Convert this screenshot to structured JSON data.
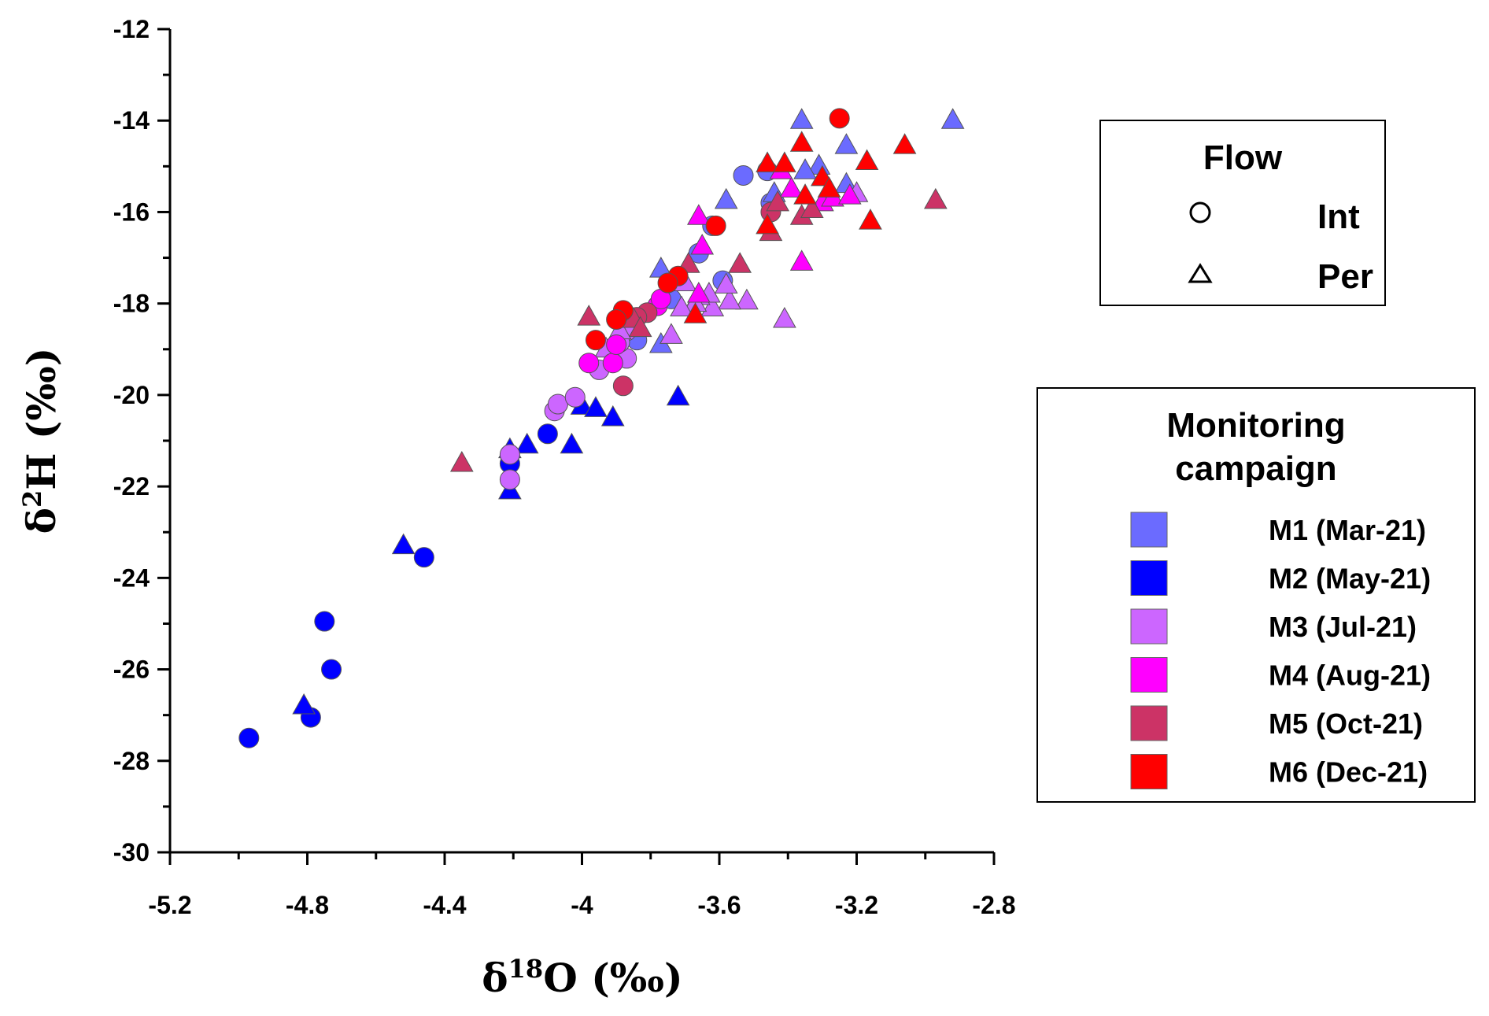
{
  "chart_data": {
    "type": "scatter",
    "title": "",
    "xlabel": "δ18O (‰)",
    "ylabel": "δ2H (‰)",
    "xlabel_parts": {
      "symbol": "δ",
      "sup": "18",
      "rest": "O (‰)"
    },
    "ylabel_parts": {
      "symbol": "δ",
      "sup": "2",
      "rest": "H (‰)"
    },
    "xlim": [
      -5.2,
      -2.8
    ],
    "ylim": [
      -30,
      -12
    ],
    "xticks": [
      -5.2,
      -4.8,
      -4.4,
      -4,
      -3.6,
      -3.2,
      -2.8
    ],
    "xtick_labels": [
      "-5.2",
      "-4.8",
      "-4.4",
      "-4",
      "-3.6",
      "-3.2",
      "-2.8"
    ],
    "yticks": [
      -30,
      -28,
      -26,
      -24,
      -22,
      -20,
      -18,
      -16,
      -14,
      -12
    ],
    "ytick_labels": [
      "-30",
      "-28",
      "-26",
      "-24",
      "-22",
      "-20",
      "-18",
      "-16",
      "-14",
      "-12"
    ],
    "grid": false,
    "legend_flow": {
      "title": "Flow",
      "entries": [
        {
          "marker": "circle",
          "label": "Int"
        },
        {
          "marker": "triangle",
          "label": "Per"
        }
      ]
    },
    "legend_campaign": {
      "title_lines": [
        "Monitoring",
        "campaign"
      ],
      "entries": [
        {
          "label": "M1 (Mar-21)",
          "color": "#6b6bff"
        },
        {
          "label": "M2 (May-21)",
          "color": "#0000ff"
        },
        {
          "label": "M3 (Jul-21)",
          "color": "#cc66ff"
        },
        {
          "label": "M4 (Aug-21)",
          "color": "#ff00ff"
        },
        {
          "label": "M5 (Oct-21)",
          "color": "#cc3366"
        },
        {
          "label": "M6 (Dec-21)",
          "color": "#ff0000"
        }
      ]
    },
    "series": [
      {
        "name": "M1 (Mar-21)",
        "color": "#6b6bff",
        "int": [
          [
            -3.53,
            -15.2
          ],
          [
            -3.46,
            -15.1
          ],
          [
            -3.45,
            -15.8
          ],
          [
            -3.62,
            -16.3
          ],
          [
            -3.66,
            -16.9
          ],
          [
            -3.59,
            -17.5
          ],
          [
            -3.74,
            -17.9
          ],
          [
            -3.84,
            -18.8
          ]
        ],
        "per": [
          [
            -3.36,
            -14.0
          ],
          [
            -2.92,
            -14.0
          ],
          [
            -3.23,
            -14.55
          ],
          [
            -3.31,
            -15.0
          ],
          [
            -3.35,
            -15.1
          ],
          [
            -3.23,
            -15.4
          ],
          [
            -3.44,
            -15.6
          ],
          [
            -3.58,
            -15.75
          ],
          [
            -3.77,
            -17.25
          ],
          [
            -3.77,
            -18.9
          ]
        ]
      },
      {
        "name": "M2 (May-21)",
        "color": "#0000ff",
        "int": [
          [
            -4.97,
            -27.5
          ],
          [
            -4.79,
            -27.05
          ],
          [
            -4.73,
            -26.0
          ],
          [
            -4.75,
            -24.95
          ],
          [
            -4.46,
            -23.55
          ],
          [
            -4.21,
            -21.5
          ],
          [
            -4.1,
            -20.85
          ]
        ],
        "per": [
          [
            -4.81,
            -26.8
          ],
          [
            -4.52,
            -23.3
          ],
          [
            -4.21,
            -22.1
          ],
          [
            -4.21,
            -21.2
          ],
          [
            -4.16,
            -21.1
          ],
          [
            -4.03,
            -21.1
          ],
          [
            -4.0,
            -20.25
          ],
          [
            -3.96,
            -20.3
          ],
          [
            -3.91,
            -20.5
          ],
          [
            -3.72,
            -20.05
          ]
        ]
      },
      {
        "name": "M3 (Jul-21)",
        "color": "#cc66ff",
        "int": [
          [
            -4.21,
            -21.3
          ],
          [
            -4.21,
            -21.85
          ],
          [
            -4.08,
            -20.35
          ],
          [
            -4.07,
            -20.2
          ],
          [
            -4.02,
            -20.05
          ],
          [
            -3.95,
            -19.45
          ],
          [
            -3.87,
            -19.2
          ],
          [
            -3.87,
            -18.6
          ],
          [
            -3.89,
            -18.85
          ]
        ],
        "per": [
          [
            -3.41,
            -18.35
          ],
          [
            -3.52,
            -17.95
          ],
          [
            -3.57,
            -17.95
          ],
          [
            -3.62,
            -18.1
          ],
          [
            -3.63,
            -17.8
          ],
          [
            -3.66,
            -17.85
          ],
          [
            -3.67,
            -18.0
          ],
          [
            -3.7,
            -17.55
          ],
          [
            -3.71,
            -18.1
          ],
          [
            -3.74,
            -18.7
          ],
          [
            -3.58,
            -17.6
          ],
          [
            -3.89,
            -18.6
          ],
          [
            -3.93,
            -19.0
          ],
          [
            -3.2,
            -15.6
          ]
        ]
      },
      {
        "name": "M4 (Aug-21)",
        "color": "#ff00ff",
        "int": [
          [
            -3.98,
            -19.3
          ],
          [
            -3.91,
            -19.3
          ],
          [
            -3.9,
            -18.9
          ],
          [
            -3.78,
            -18.05
          ],
          [
            -3.77,
            -17.9
          ]
        ],
        "per": [
          [
            -3.42,
            -15.1
          ],
          [
            -3.39,
            -15.5
          ],
          [
            -3.36,
            -17.1
          ],
          [
            -3.3,
            -15.8
          ],
          [
            -3.27,
            -15.7
          ],
          [
            -3.22,
            -15.65
          ],
          [
            -3.66,
            -16.1
          ],
          [
            -3.65,
            -16.75
          ],
          [
            -3.66,
            -17.8
          ]
        ]
      },
      {
        "name": "M5 (Oct-21)",
        "color": "#cc3366",
        "int": [
          [
            -3.88,
            -19.8
          ],
          [
            -3.81,
            -18.2
          ],
          [
            -3.84,
            -18.3
          ],
          [
            -3.45,
            -16.0
          ]
        ],
        "per": [
          [
            -4.35,
            -21.5
          ],
          [
            -3.98,
            -18.3
          ],
          [
            -3.85,
            -18.35
          ],
          [
            -3.83,
            -18.55
          ],
          [
            -3.69,
            -17.15
          ],
          [
            -3.54,
            -17.15
          ],
          [
            -3.45,
            -16.45
          ],
          [
            -3.43,
            -15.8
          ],
          [
            -3.36,
            -16.1
          ],
          [
            -3.33,
            -15.95
          ],
          [
            -2.97,
            -15.75
          ]
        ]
      },
      {
        "name": "M6 (Dec-21)",
        "color": "#ff0000",
        "int": [
          [
            -3.25,
            -13.95
          ],
          [
            -3.61,
            -16.3
          ],
          [
            -3.72,
            -17.4
          ],
          [
            -3.75,
            -17.55
          ],
          [
            -3.88,
            -18.15
          ],
          [
            -3.9,
            -18.35
          ],
          [
            -3.96,
            -18.8
          ]
        ],
        "per": [
          [
            -3.06,
            -14.55
          ],
          [
            -3.46,
            -14.95
          ],
          [
            -3.41,
            -14.95
          ],
          [
            -3.36,
            -14.5
          ],
          [
            -3.3,
            -15.25
          ],
          [
            -3.28,
            -15.5
          ],
          [
            -3.35,
            -15.65
          ],
          [
            -3.46,
            -16.3
          ],
          [
            -3.17,
            -14.9
          ],
          [
            -3.16,
            -16.2
          ],
          [
            -3.67,
            -18.25
          ]
        ]
      }
    ]
  }
}
